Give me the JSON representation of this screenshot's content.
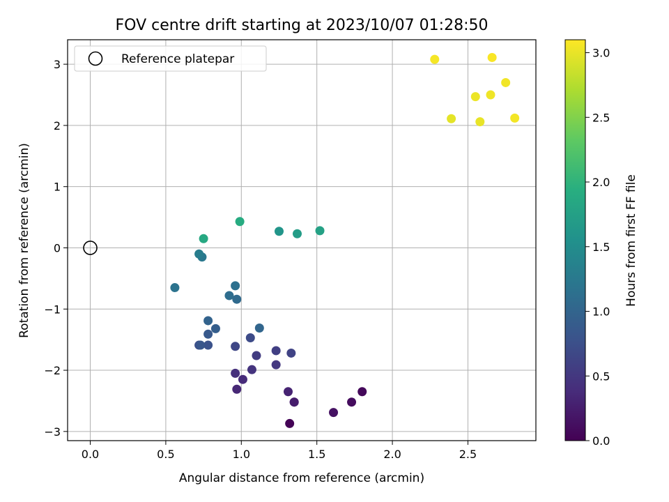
{
  "chart_data": {
    "type": "scatter",
    "title": "FOV centre drift starting at 2023/10/07 01:28:50",
    "xlabel": "Angular distance from reference (arcmin)",
    "ylabel": "Rotation from reference (arcmin)",
    "xlim": [
      -0.15,
      2.95
    ],
    "ylim": [
      -3.15,
      3.4
    ],
    "xticks": [
      0.0,
      0.5,
      1.0,
      1.5,
      2.0,
      2.5
    ],
    "xtick_labels": [
      "0.0",
      "0.5",
      "1.0",
      "1.5",
      "2.0",
      "2.5"
    ],
    "yticks": [
      -3,
      -2,
      -1,
      0,
      1,
      2,
      3
    ],
    "ytick_labels": [
      "−3",
      "−2",
      "−1",
      "0",
      "1",
      "2",
      "3"
    ],
    "grid": true,
    "legend": {
      "position": "upper-left",
      "entries": [
        "Reference platepar"
      ]
    },
    "reference_point": {
      "x": 0.0,
      "y": 0.0
    },
    "colorbar": {
      "label": "Hours from first FF file",
      "colormap": "viridis",
      "range": [
        0.0,
        3.1
      ],
      "ticks": [
        0.0,
        0.5,
        1.0,
        1.5,
        2.0,
        2.5,
        3.0
      ],
      "tick_labels": [
        "0.0",
        "0.5",
        "1.0",
        "1.5",
        "2.0",
        "2.5",
        "3.0"
      ]
    },
    "points": [
      {
        "x": 1.32,
        "y": -2.87,
        "c": 0.02
      },
      {
        "x": 1.8,
        "y": -2.35,
        "c": 0.06
      },
      {
        "x": 1.73,
        "y": -2.52,
        "c": 0.1
      },
      {
        "x": 1.61,
        "y": -2.69,
        "c": 0.14
      },
      {
        "x": 1.35,
        "y": -2.52,
        "c": 0.2
      },
      {
        "x": 1.35,
        "y": -2.52,
        "c": 0.24
      },
      {
        "x": 1.31,
        "y": -2.35,
        "c": 0.3
      },
      {
        "x": 0.97,
        "y": -2.31,
        "c": 0.34
      },
      {
        "x": 1.01,
        "y": -2.15,
        "c": 0.38
      },
      {
        "x": 0.96,
        "y": -2.05,
        "c": 0.42
      },
      {
        "x": 1.07,
        "y": -1.99,
        "c": 0.46
      },
      {
        "x": 1.23,
        "y": -1.91,
        "c": 0.5
      },
      {
        "x": 1.1,
        "y": -1.76,
        "c": 0.54
      },
      {
        "x": 1.23,
        "y": -1.68,
        "c": 0.58
      },
      {
        "x": 1.33,
        "y": -1.72,
        "c": 0.62
      },
      {
        "x": 0.96,
        "y": -1.61,
        "c": 0.66
      },
      {
        "x": 1.06,
        "y": -1.47,
        "c": 0.7
      },
      {
        "x": 0.72,
        "y": -1.59,
        "c": 0.74
      },
      {
        "x": 0.78,
        "y": -1.59,
        "c": 0.78
      },
      {
        "x": 0.73,
        "y": -1.59,
        "c": 0.82
      },
      {
        "x": 0.78,
        "y": -1.41,
        "c": 0.86
      },
      {
        "x": 0.83,
        "y": -1.32,
        "c": 0.92
      },
      {
        "x": 0.78,
        "y": -1.19,
        "c": 0.98
      },
      {
        "x": 1.12,
        "y": -1.31,
        "c": 1.02
      },
      {
        "x": 0.97,
        "y": -0.84,
        "c": 1.06
      },
      {
        "x": 0.92,
        "y": -0.78,
        "c": 1.1
      },
      {
        "x": 0.96,
        "y": -0.62,
        "c": 1.14
      },
      {
        "x": 0.56,
        "y": -0.65,
        "c": 1.18
      },
      {
        "x": 0.74,
        "y": -0.15,
        "c": 1.24
      },
      {
        "x": 0.72,
        "y": -0.1,
        "c": 1.3
      },
      {
        "x": 1.25,
        "y": 0.27,
        "c": 1.6
      },
      {
        "x": 1.37,
        "y": 0.23,
        "c": 1.7
      },
      {
        "x": 1.52,
        "y": 0.28,
        "c": 1.76
      },
      {
        "x": 0.75,
        "y": 0.15,
        "c": 1.86
      },
      {
        "x": 0.99,
        "y": 0.43,
        "c": 1.9
      },
      {
        "x": 2.39,
        "y": 2.11,
        "c": 2.98
      },
      {
        "x": 2.58,
        "y": 2.06,
        "c": 3.0
      },
      {
        "x": 2.55,
        "y": 2.47,
        "c": 3.02
      },
      {
        "x": 2.65,
        "y": 2.5,
        "c": 3.03
      },
      {
        "x": 2.75,
        "y": 2.7,
        "c": 3.04
      },
      {
        "x": 2.81,
        "y": 2.12,
        "c": 3.05
      },
      {
        "x": 2.28,
        "y": 3.08,
        "c": 3.06
      },
      {
        "x": 2.66,
        "y": 3.11,
        "c": 3.08
      }
    ]
  }
}
